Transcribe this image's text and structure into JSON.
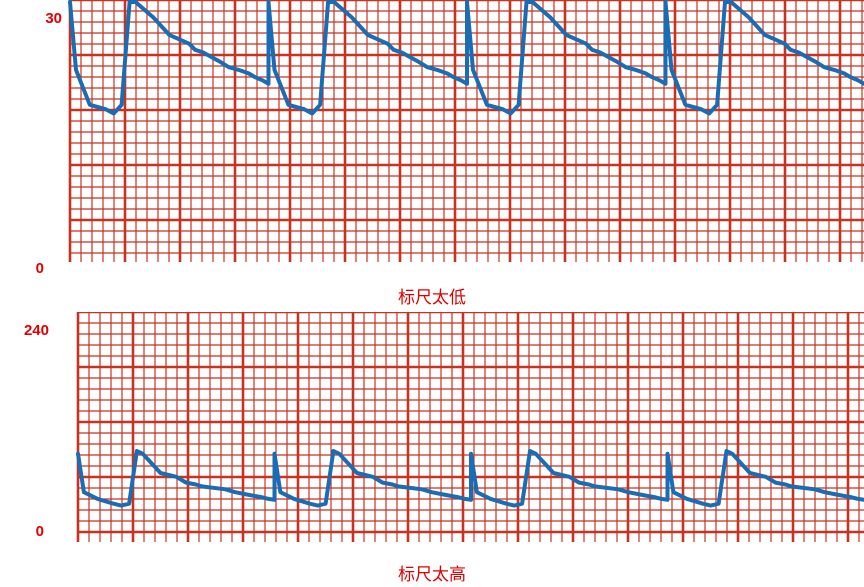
{
  "colors": {
    "grid": "#c8321e",
    "trace": "#1a6db5",
    "label": "#e00000"
  },
  "chart_data": [
    {
      "type": "line",
      "title": "",
      "caption": "标尺太低",
      "scale_max_label": "30",
      "scale_min_label": "0",
      "ylim": [
        0,
        30
      ],
      "note": "waveform clipped at top",
      "series": [
        {
          "name": "",
          "x": [
            0,
            0.03,
            0.1,
            0.18,
            0.22,
            0.26,
            0.3,
            0.33,
            0.42,
            0.5,
            0.55,
            0.6,
            0.63,
            0.67,
            0.75,
            0.8,
            0.85,
            0.9,
            0.93,
            0.97,
            1.0
          ],
          "y": [
            31,
            22,
            18,
            17.5,
            17,
            18,
            31,
            31,
            28,
            26,
            25.5,
            25,
            24.3,
            24,
            23,
            22.3,
            22,
            21.6,
            21.2,
            20.8,
            20.4
          ]
        }
      ]
    },
    {
      "type": "line",
      "title": "",
      "caption": "标尺太高",
      "scale_max_label": "240",
      "scale_min_label": "0",
      "ylim": [
        0,
        240
      ],
      "series": [
        {
          "name": "",
          "x": [
            0,
            0.03,
            0.1,
            0.18,
            0.22,
            0.26,
            0.3,
            0.33,
            0.42,
            0.5,
            0.55,
            0.6,
            0.63,
            0.67,
            0.75,
            0.8,
            0.85,
            0.9,
            0.93,
            0.97,
            1.0
          ],
          "y": [
            92,
            52,
            45,
            40,
            38,
            40,
            95,
            92,
            72,
            68,
            62,
            60,
            58,
            57,
            55,
            52,
            50,
            48,
            47,
            45,
            44
          ]
        }
      ]
    }
  ]
}
